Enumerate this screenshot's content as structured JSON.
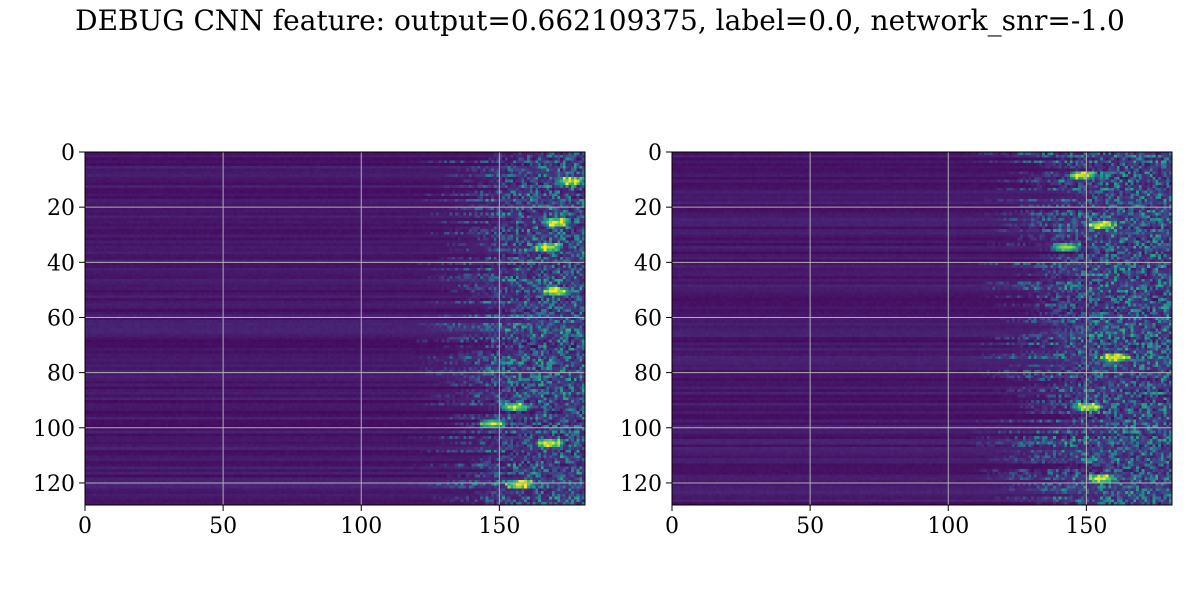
{
  "figure": {
    "suptitle": "DEBUG CNN feature: output=0.662109375, label=0.0, network_snr=-1.0"
  },
  "colors": {
    "background": "#ffffff",
    "grid": "#b0b0b0",
    "colormap": "viridis"
  },
  "chart_data": [
    {
      "type": "heatmap",
      "title": "",
      "xlabel": "",
      "ylabel": "",
      "xlim": [
        0,
        181
      ],
      "ylim": [
        128,
        0
      ],
      "xticks": [
        0,
        50,
        100,
        150
      ],
      "yticks": [
        0,
        20,
        40,
        60,
        80,
        100,
        120
      ],
      "grid": true,
      "rows": 128,
      "cols": 181,
      "colormap": "viridis",
      "seed": 7,
      "onset_cols": [
        115,
        145
      ],
      "hot_spots": [
        [
          175,
          10
        ],
        [
          170,
          25
        ],
        [
          167,
          34
        ],
        [
          170,
          50
        ],
        [
          147,
          98
        ],
        [
          155,
          92
        ],
        [
          168,
          105
        ],
        [
          157,
          120
        ]
      ]
    },
    {
      "type": "heatmap",
      "title": "",
      "xlabel": "",
      "ylabel": "",
      "xlim": [
        0,
        181
      ],
      "ylim": [
        128,
        0
      ],
      "xticks": [
        0,
        50,
        100,
        150
      ],
      "yticks": [
        0,
        20,
        40,
        60,
        80,
        100,
        120
      ],
      "grid": true,
      "rows": 128,
      "cols": 181,
      "colormap": "viridis",
      "seed": 19,
      "onset_cols": [
        105,
        140
      ],
      "hot_spots": [
        [
          148,
          8
        ],
        [
          155,
          26
        ],
        [
          142,
          34
        ],
        [
          160,
          74
        ],
        [
          150,
          92
        ],
        [
          155,
          118
        ]
      ]
    }
  ]
}
